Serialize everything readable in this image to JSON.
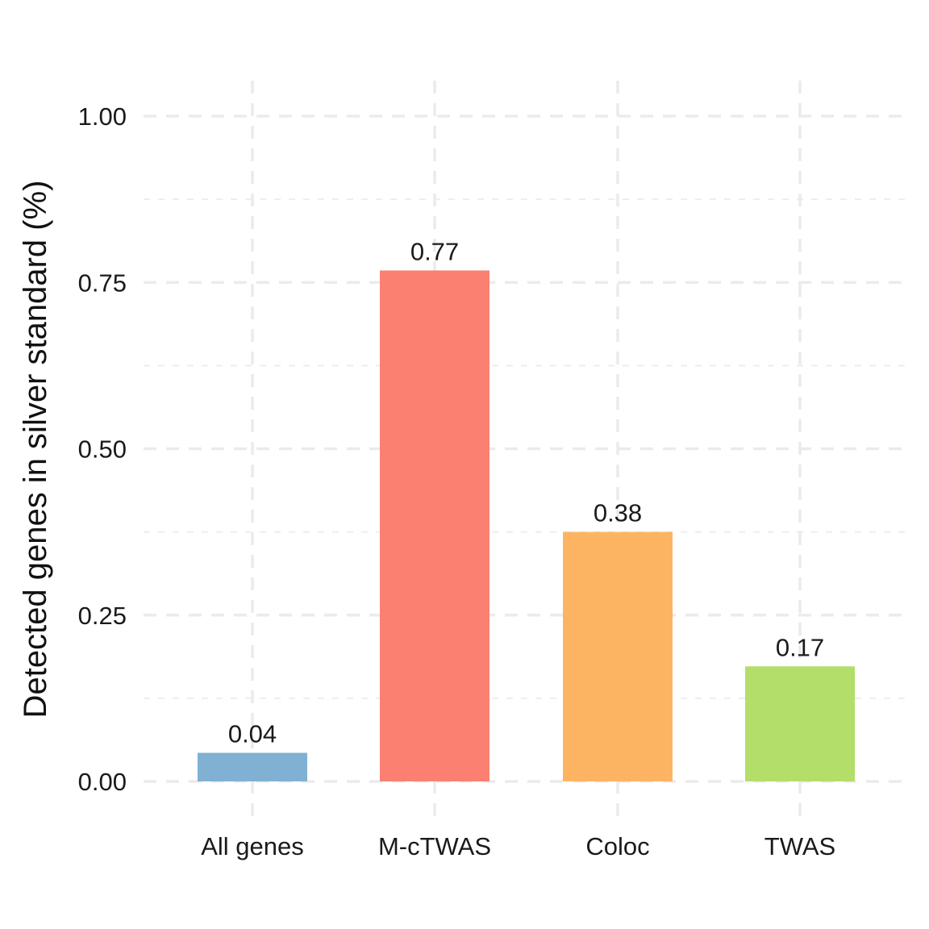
{
  "chart_data": {
    "type": "bar",
    "title": "",
    "xlabel": "",
    "ylabel": "Detected genes in silver standard (%)",
    "categories": [
      "All genes",
      "M-cTWAS",
      "Coloc",
      "TWAS"
    ],
    "values": [
      0.043,
      0.768,
      0.375,
      0.173
    ],
    "value_labels": [
      "0.04",
      "0.77",
      "0.38",
      "0.17"
    ],
    "colors": [
      "#80B1D3",
      "#FB8072",
      "#FDB462",
      "#B3DE69"
    ],
    "ylim": [
      0,
      1
    ],
    "yticks": [
      0,
      0.25,
      0.5,
      0.75,
      1
    ],
    "ytick_labels": [
      "0.00",
      "0.25",
      "0.50",
      "0.75",
      "1.00"
    ],
    "grid": true,
    "legend": "none"
  }
}
